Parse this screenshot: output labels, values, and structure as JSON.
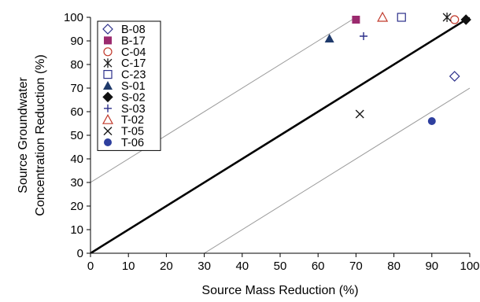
{
  "chart_data": {
    "type": "scatter",
    "title": "",
    "xlabel": "Source Mass Reduction (%)",
    "ylabel_lines": [
      "Source Groundwater",
      "Concentration Reduction (%)"
    ],
    "xlim": [
      0,
      100
    ],
    "ylim": [
      0,
      100
    ],
    "xticks": [
      "0",
      "10",
      "20",
      "30",
      "40",
      "50",
      "60",
      "70",
      "80",
      "90",
      "100"
    ],
    "yticks": [
      "0",
      "10",
      "20",
      "30",
      "40",
      "50",
      "60",
      "70",
      "80",
      "90",
      "100"
    ],
    "grid": false,
    "legend_position": "top-left",
    "reference_lines": [
      {
        "style": "bold",
        "from": [
          0,
          0
        ],
        "to": [
          100,
          100
        ]
      },
      {
        "style": "thin",
        "from": [
          0,
          30
        ],
        "to": [
          70,
          100
        ]
      },
      {
        "style": "thin",
        "from": [
          30,
          0
        ],
        "to": [
          100,
          70
        ]
      }
    ],
    "series": [
      {
        "name": "B-08",
        "marker": "diamond-open",
        "color": "#2b2e8a",
        "points": [
          [
            96,
            75
          ]
        ]
      },
      {
        "name": "B-17",
        "marker": "square-filled",
        "color": "#9b2a6e",
        "points": [
          [
            70,
            99
          ]
        ]
      },
      {
        "name": "C-04",
        "marker": "circle-open",
        "color": "#c0392b",
        "points": [
          [
            96,
            99
          ]
        ]
      },
      {
        "name": "C-17",
        "marker": "asterisk",
        "color": "#1a1a1a",
        "points": [
          [
            94,
            100
          ]
        ]
      },
      {
        "name": "C-23",
        "marker": "square-open",
        "color": "#2b2e8a",
        "points": [
          [
            82,
            100
          ]
        ]
      },
      {
        "name": "S-01",
        "marker": "triangle-filled",
        "color": "#1f3a6b",
        "points": [
          [
            63,
            91
          ]
        ]
      },
      {
        "name": "S-02",
        "marker": "diamond-filled",
        "color": "#111111",
        "points": [
          [
            99,
            99
          ]
        ]
      },
      {
        "name": "S-03",
        "marker": "plus",
        "color": "#2b2e8a",
        "points": [
          [
            72,
            92
          ]
        ]
      },
      {
        "name": "T-02",
        "marker": "triangle-open",
        "color": "#c0392b",
        "points": [
          [
            77,
            100
          ]
        ]
      },
      {
        "name": "T-05",
        "marker": "x",
        "color": "#1a1a1a",
        "points": [
          [
            71,
            59
          ]
        ]
      },
      {
        "name": "T-06",
        "marker": "circle-filled",
        "color": "#2e3f9e",
        "points": [
          [
            90,
            56
          ]
        ]
      }
    ]
  }
}
